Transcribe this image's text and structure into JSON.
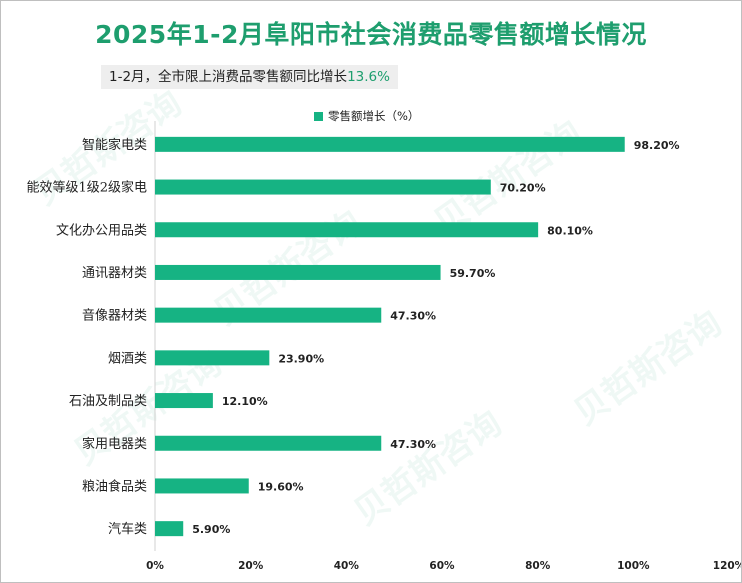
{
  "title": "2025年1-2月阜阳市社会消费品零售额增长情况",
  "subtitle": {
    "prefix": "1-2月，全市限上消费品零售额同比增长",
    "value": "13.6%"
  },
  "colors": {
    "accent": "#1e9e6e",
    "bar": "#16b383"
  },
  "watermark": "贝哲斯咨询",
  "chart_data": {
    "type": "bar",
    "orientation": "horizontal",
    "legend": {
      "label": "零售额增长（%）",
      "placement": "top"
    },
    "categories": [
      "智能家电类",
      "能效等级1级2级家电",
      "文化办公用品类",
      "通讯器材类",
      "音像器材类",
      "烟酒类",
      "石油及制品类",
      "家用电器类",
      "粮油食品类",
      "汽车类"
    ],
    "series": [
      {
        "name": "零售额增长（%）",
        "values": [
          98.2,
          70.2,
          80.1,
          59.7,
          47.3,
          23.9,
          12.1,
          47.3,
          19.6,
          5.9
        ],
        "labels": [
          "98.20%",
          "70.20%",
          "80.10%",
          "59.70%",
          "47.30%",
          "23.90%",
          "12.10%",
          "47.30%",
          "19.60%",
          "5.90%"
        ]
      }
    ],
    "xlim": [
      0,
      120
    ],
    "xticks": [
      0,
      20,
      40,
      60,
      80,
      100,
      120
    ],
    "xtick_labels": [
      "0%",
      "20%",
      "40%",
      "60%",
      "80%",
      "100%",
      "120%"
    ],
    "grid": false
  }
}
